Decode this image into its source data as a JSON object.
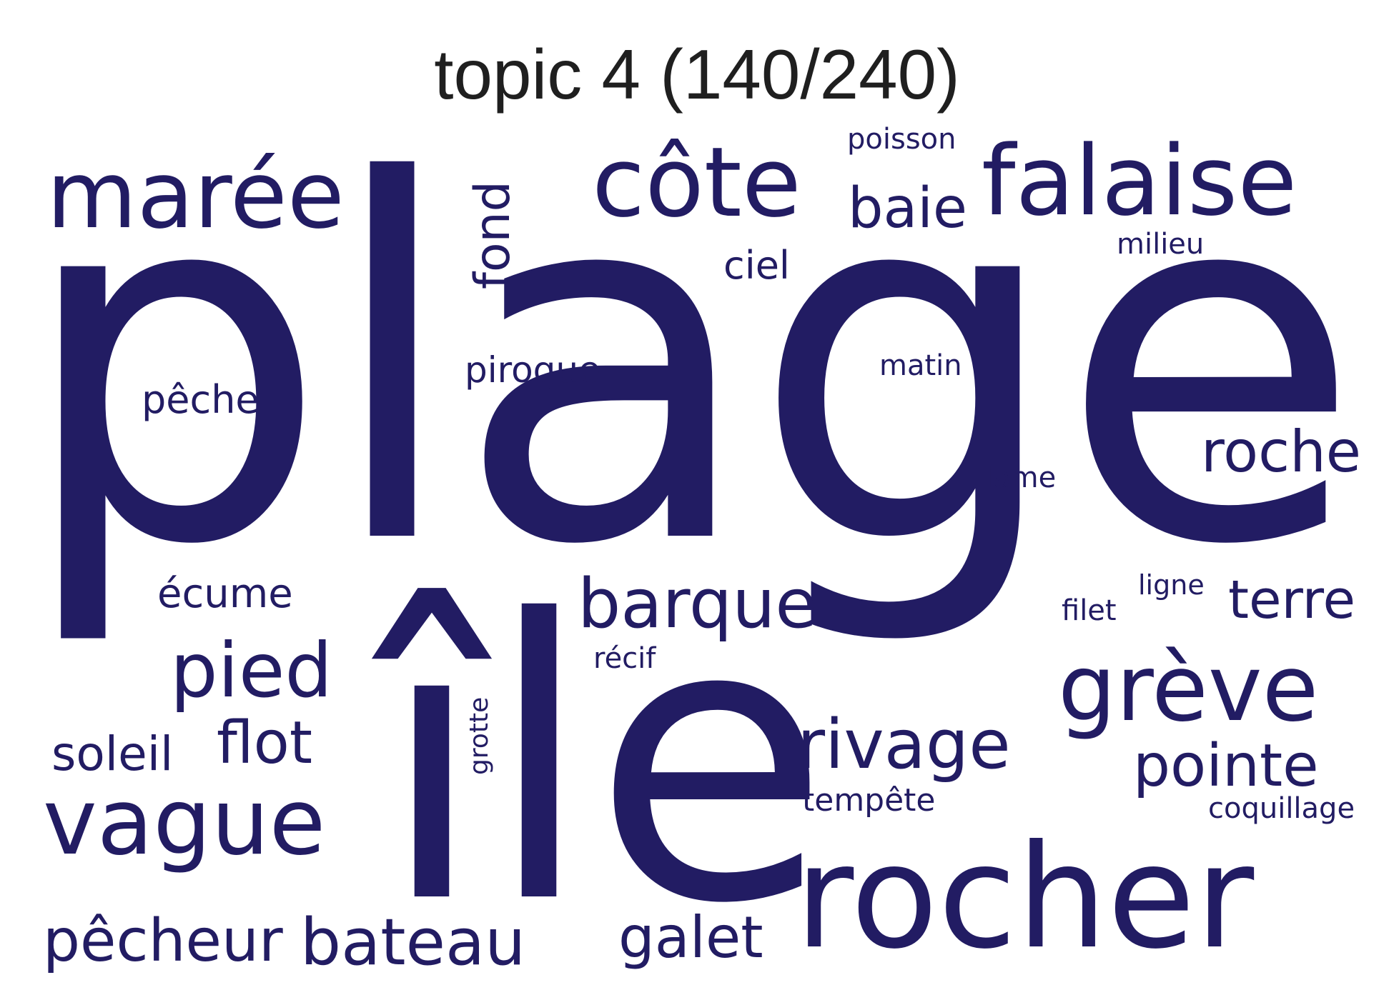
{
  "title": "topic 4 (140/240)",
  "colors": {
    "word": "#221C63",
    "title": "#1f1f1f",
    "background": "#ffffff"
  },
  "words": [
    {
      "text": "plage"
    },
    {
      "text": "île"
    },
    {
      "text": "rocher"
    },
    {
      "text": "falaise"
    },
    {
      "text": "côte"
    },
    {
      "text": "marée"
    },
    {
      "text": "vague"
    },
    {
      "text": "grève"
    },
    {
      "text": "rivage"
    },
    {
      "text": "bateau"
    },
    {
      "text": "barque"
    },
    {
      "text": "pied"
    },
    {
      "text": "pêcheur"
    },
    {
      "text": "pointe"
    },
    {
      "text": "roche"
    },
    {
      "text": "flot"
    },
    {
      "text": "galet"
    },
    {
      "text": "baie"
    },
    {
      "text": "terre"
    },
    {
      "text": "fond"
    },
    {
      "text": "soleil"
    },
    {
      "text": "écume"
    },
    {
      "text": "pêche"
    },
    {
      "text": "ciel"
    },
    {
      "text": "pirogue"
    },
    {
      "text": "tempête"
    },
    {
      "text": "coquillage"
    },
    {
      "text": "poisson"
    },
    {
      "text": "matin"
    },
    {
      "text": "milieu"
    },
    {
      "text": "lame"
    },
    {
      "text": "ligne"
    },
    {
      "text": "filet"
    },
    {
      "text": "récif"
    },
    {
      "text": "grotte"
    }
  ]
}
